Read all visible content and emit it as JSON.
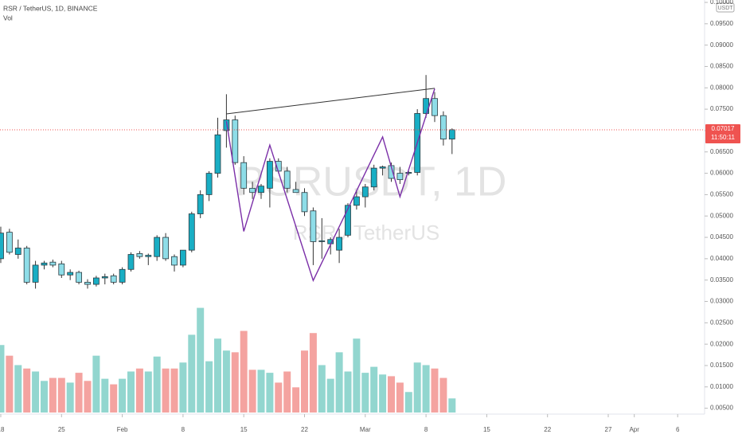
{
  "chart_data": {
    "type": "candlestick",
    "title": "RSR / TetherUS, 1D, BINANCE",
    "indicator_label": "Vol",
    "watermark": [
      "RSRUSDT, 1D",
      "RSR / TetherUS"
    ],
    "currency": "USDT",
    "last_price": {
      "value": 0.07017,
      "label": "0.07017"
    },
    "countdown": "11:50:11",
    "x": [
      0,
      1,
      2,
      3,
      4,
      5,
      6,
      7,
      8,
      9,
      10,
      11,
      12,
      13,
      14,
      15,
      16,
      17,
      18,
      19,
      20,
      21,
      22,
      23,
      24,
      25,
      26,
      27,
      28,
      29,
      30,
      31,
      32,
      33,
      34,
      35,
      36,
      37,
      38,
      39,
      40,
      41,
      42,
      43,
      44,
      45,
      46,
      47,
      48,
      49,
      50,
      51,
      52
    ],
    "open": [
      0.04,
      0.0462,
      0.041,
      0.0425,
      0.0345,
      0.0385,
      0.0392,
      0.0388,
      0.0362,
      0.0368,
      0.0345,
      0.034,
      0.0355,
      0.036,
      0.0345,
      0.0375,
      0.0412,
      0.0405,
      0.0405,
      0.045,
      0.0405,
      0.0385,
      0.042,
      0.0505,
      0.055,
      0.06,
      0.07,
      0.0725,
      0.0625,
      0.0565,
      0.0555,
      0.0565,
      0.0628,
      0.0605,
      0.0562,
      0.0555,
      0.0512,
      0.044,
      0.0435,
      0.042,
      0.0455,
      0.0525,
      0.0545,
      0.0568,
      0.0612,
      0.0618,
      0.06,
      0.06,
      0.0602,
      0.074,
      0.0775,
      0.0735,
      0.068
    ],
    "high": [
      0.0475,
      0.047,
      0.0445,
      0.043,
      0.0395,
      0.0395,
      0.0398,
      0.0395,
      0.0375,
      0.0372,
      0.0352,
      0.036,
      0.0365,
      0.0365,
      0.038,
      0.0415,
      0.0418,
      0.0412,
      0.0455,
      0.046,
      0.041,
      0.042,
      0.051,
      0.056,
      0.0605,
      0.073,
      0.0785,
      0.0735,
      0.064,
      0.058,
      0.0575,
      0.0635,
      0.0635,
      0.0615,
      0.058,
      0.0565,
      0.052,
      0.0495,
      0.045,
      0.047,
      0.053,
      0.056,
      0.0575,
      0.062,
      0.0618,
      0.0625,
      0.0615,
      0.0605,
      0.075,
      0.083,
      0.079,
      0.0745,
      0.0705
    ],
    "low": [
      0.039,
      0.041,
      0.04,
      0.034,
      0.033,
      0.0375,
      0.038,
      0.0355,
      0.035,
      0.034,
      0.033,
      0.0335,
      0.034,
      0.034,
      0.034,
      0.037,
      0.04,
      0.0385,
      0.0395,
      0.0395,
      0.037,
      0.038,
      0.0415,
      0.0495,
      0.0535,
      0.059,
      0.066,
      0.062,
      0.055,
      0.054,
      0.054,
      0.052,
      0.06,
      0.0555,
      0.0555,
      0.05,
      0.0385,
      0.04,
      0.041,
      0.039,
      0.045,
      0.0515,
      0.052,
      0.056,
      0.0595,
      0.058,
      0.0575,
      0.0595,
      0.0595,
      0.073,
      0.072,
      0.0665,
      0.0645
    ],
    "close": [
      0.046,
      0.0415,
      0.0425,
      0.0345,
      0.0385,
      0.039,
      0.0385,
      0.0362,
      0.0368,
      0.0345,
      0.034,
      0.0355,
      0.0358,
      0.0345,
      0.0375,
      0.041,
      0.0405,
      0.0408,
      0.045,
      0.04,
      0.0385,
      0.042,
      0.0505,
      0.055,
      0.06,
      0.069,
      0.0725,
      0.0625,
      0.0565,
      0.0555,
      0.057,
      0.0628,
      0.0605,
      0.0565,
      0.0555,
      0.051,
      0.044,
      0.0442,
      0.0445,
      0.045,
      0.0525,
      0.0545,
      0.0568,
      0.0612,
      0.0615,
      0.0588,
      0.0585,
      0.0602,
      0.074,
      0.0775,
      0.0735,
      0.068,
      0.0702
    ],
    "volume": [
      0.0198,
      0.0173,
      0.0151,
      0.0143,
      0.0136,
      0.0114,
      0.0121,
      0.0121,
      0.011,
      0.0133,
      0.0114,
      0.0173,
      0.0119,
      0.0106,
      0.0119,
      0.0136,
      0.0143,
      0.0136,
      0.0171,
      0.0143,
      0.0143,
      0.0157,
      0.0222,
      0.0285,
      0.016,
      0.0213,
      0.0185,
      0.0181,
      0.0231,
      0.014,
      0.014,
      0.0133,
      0.011,
      0.0136,
      0.0099,
      0.0185,
      0.0226,
      0.0151,
      0.0119,
      0.0181,
      0.0136,
      0.0213,
      0.0133,
      0.0147,
      0.0129,
      0.0125,
      0.011,
      0.0088,
      0.0157,
      0.0151,
      0.0143,
      0.0121,
      0.0073
    ],
    "up_color": "#19aec4",
    "down_color": "#8edde8",
    "volume_up_color": "#92d6cf",
    "volume_down_color": "#f4a3a0",
    "trendline": {
      "color": "#333333",
      "points": [
        {
          "x": 26,
          "y": 0.0739
        },
        {
          "x": 50,
          "y": 0.0799
        }
      ]
    },
    "pattern": {
      "color": "#7b2fa8",
      "points": [
        {
          "x": 26,
          "y": 0.0722
        },
        {
          "x": 28,
          "y": 0.0464
        },
        {
          "x": 31,
          "y": 0.0666
        },
        {
          "x": 36,
          "y": 0.0349
        },
        {
          "x": 44,
          "y": 0.0685
        },
        {
          "x": 46,
          "y": 0.0545
        },
        {
          "x": 50,
          "y": 0.0798
        }
      ]
    },
    "xlim": [
      -0.09,
      81.1
    ],
    "ylim": [
      0.004,
      0.1
    ],
    "xticks": [
      {
        "value": 0,
        "label": "18"
      },
      {
        "value": 7,
        "label": "25"
      },
      {
        "value": 14,
        "label": "Feb"
      },
      {
        "value": 21,
        "label": "8"
      },
      {
        "value": 28,
        "label": "15"
      },
      {
        "value": 35,
        "label": "22"
      },
      {
        "value": 42,
        "label": "Mar"
      },
      {
        "value": 49,
        "label": "8"
      },
      {
        "value": 56,
        "label": "15"
      },
      {
        "value": 63,
        "label": "22"
      },
      {
        "value": 70,
        "label": "27"
      },
      {
        "value": 73,
        "label": "Apr"
      },
      {
        "value": 78,
        "label": "6"
      }
    ],
    "yticks": [
      {
        "value": 0.005,
        "label": "0.00500"
      },
      {
        "value": 0.01,
        "label": "0.01000"
      },
      {
        "value": 0.015,
        "label": "0.01500"
      },
      {
        "value": 0.02,
        "label": "0.02000"
      },
      {
        "value": 0.025,
        "label": "0.02500"
      },
      {
        "value": 0.03,
        "label": "0.03000"
      },
      {
        "value": 0.035,
        "label": "0.03500"
      },
      {
        "value": 0.04,
        "label": "0.04000"
      },
      {
        "value": 0.045,
        "label": "0.04500"
      },
      {
        "value": 0.05,
        "label": "0.05000"
      },
      {
        "value": 0.055,
        "label": "0.05500"
      },
      {
        "value": 0.06,
        "label": "0.06000"
      },
      {
        "value": 0.065,
        "label": "0.06500"
      },
      {
        "value": 0.07,
        "label": "0.07000"
      },
      {
        "value": 0.075,
        "label": "0.07500"
      },
      {
        "value": 0.08,
        "label": "0.08000"
      },
      {
        "value": 0.085,
        "label": "0.08500"
      },
      {
        "value": 0.09,
        "label": "0.09000"
      },
      {
        "value": 0.095,
        "label": "0.09500"
      },
      {
        "value": 0.1,
        "label": "0.10000"
      }
    ]
  }
}
